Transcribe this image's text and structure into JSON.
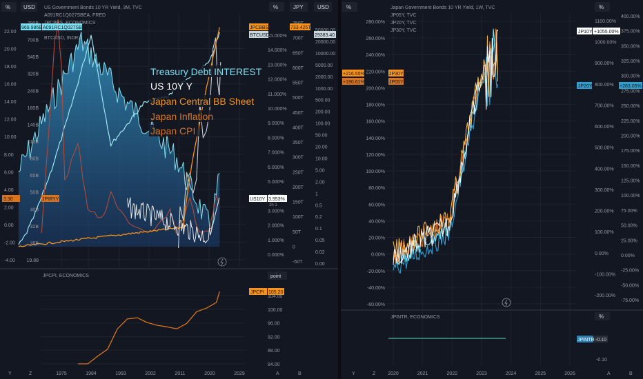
{
  "colors": {
    "bg": "#131722",
    "grid": "#2a2e39",
    "divider": "#363a45",
    "text": "#b2b5be",
    "cyan": "#7ee0f0",
    "orange": "#f7931a",
    "darkorange": "#d9741c",
    "red": "#b04a3a",
    "white": "#e8e8e8",
    "blue": "#2f7fb0",
    "teal": "#4fb3a9",
    "panelheader": "#1e222d"
  },
  "left": {
    "top_buttons": [
      "%",
      "USD",
      "%",
      "JPY",
      "USD"
    ],
    "legend": [
      "US Government Bonds 10 YR Yield, 3M, TVC",
      "A091RC1Q027SBEA, FRED",
      "JPCBBS, ECONOMICS",
      "BTCUSD, INDEX"
    ],
    "overlay_labels": [
      {
        "text": "Treasury Debt INTEREST",
        "color": "#7ee0f0"
      },
      {
        "text": "US 10Y Y",
        "color": "#ffffff"
      },
      {
        "text": "Japan Central BB Sheet",
        "color": "#f7931a"
      },
      {
        "text": "Japan Inflation",
        "color": "#d9741c"
      },
      {
        "text": "Japan CPI",
        "color": "#d9741c"
      }
    ],
    "axis_pct": [
      "22.00",
      "20.00",
      "18.00",
      "16.00",
      "14.00",
      "12.00",
      "10.00",
      "8.00",
      "6.00",
      "4.00",
      "2.00",
      "0.00",
      "-2.00",
      "-4.00"
    ],
    "axis_usd": [
      "790B",
      "700B",
      "540B",
      "320B",
      "240B",
      "180B",
      "140B",
      "110B",
      "80B",
      "65B",
      "50B",
      "40B",
      "32B",
      "25B",
      "19.88"
    ],
    "axis_pct2": [
      "15.000%",
      "14.000%",
      "13.000%",
      "12.000%",
      "11.000%",
      "10.000%",
      "9.000%",
      "8.000%",
      "7.000%",
      "6.000%",
      "5.000%",
      "4.000%",
      "3.000%",
      "2.000%",
      "1.000%",
      "0.000%"
    ],
    "axis_jpy": [
      "750T",
      "700T",
      "650T",
      "600T",
      "550T",
      "500T",
      "450T",
      "400T",
      "350T",
      "300T",
      "250T",
      "200T",
      "150T",
      "100T",
      "50T",
      "0",
      "-50T"
    ],
    "axis_usd2": [
      "50000.00",
      "20000.00",
      "10000.00",
      "5000.00",
      "2000.00",
      "1000.00",
      "500.00",
      "200.00",
      "100.00",
      "50.00",
      "20.00",
      "10.00",
      "5.00",
      "2.00",
      "1",
      "0.5",
      "0.2",
      "0.1",
      "0.05",
      "0.02",
      "0.00"
    ],
    "badges": {
      "a091": "969.986B",
      "a091_name": "A091RC1Q027SBEA",
      "jpcbbs_name": "JPCBBS",
      "jpcbbs": "733.425T",
      "btc_name": "BTCUSD",
      "btc": "29383.40",
      "jpiryy_left": "3.30",
      "jpiryy_name": "JPIRYY",
      "us10y_name": "US10Y",
      "us10y": "3.953%",
      "us10y_sub": "2h 1"
    },
    "lower": {
      "legend": "JPCPI, ECONOMICS",
      "unit_button": "point",
      "badge_name": "JPCPI",
      "badge_value": "105.20",
      "axis": [
        "104.00",
        "100.00",
        "96.00",
        "92.00",
        "88.00",
        "84.00"
      ]
    },
    "x_axis": [
      "1975",
      "1984",
      "1993",
      "2002",
      "2011",
      "2020",
      "2029"
    ],
    "corner_letters": [
      "Y",
      "Z",
      "A",
      "B"
    ]
  },
  "right": {
    "top_buttons": [
      "%",
      "%"
    ],
    "legend": [
      "Japan Government Bonds 10 YR Yield, 1W, TVC",
      "JP05Y, TVC",
      "JP20Y, TVC",
      "JP30Y, TVC"
    ],
    "axis_left": [
      "280.00%",
      "260.00%",
      "240.00%",
      "220.00%",
      "200.00%",
      "180.00%",
      "160.00%",
      "140.00%",
      "120.00%",
      "100.00%",
      "80.00%",
      "60.00%",
      "40.00%",
      "20.00%",
      "0.00%",
      "-20.00%",
      "-40.00%",
      "-60.00%"
    ],
    "axis_mid": [
      "1100.00%",
      "1000.00%",
      "900.00%",
      "800.00%",
      "700.00%",
      "600.00%",
      "500.00%",
      "400.00%",
      "300.00%",
      "200.00%",
      "100.00%",
      "0.00%",
      "-100.00%",
      "-200.00%"
    ],
    "axis_right": [
      "400.00%",
      "375.00%",
      "350.00%",
      "325.00%",
      "300.00%",
      "275.00%",
      "250.00%",
      "225.00%",
      "200.00%",
      "175.00%",
      "150.00%",
      "125.00%",
      "100.00%",
      "75.00%",
      "50.00%",
      "25.00%",
      "0.00%",
      "-25.00%",
      "-50.00%",
      "-75.00%"
    ],
    "badges": {
      "jp10y_name": "JP10Y",
      "jp10y": "+1055.00%",
      "jp30y_left": "+216.55%",
      "jp30y_name": "JP30Y",
      "jp05y_left": "+190.61%",
      "jp05y_name": "JP05Y",
      "jp20y_name": "JP20Y",
      "jp20y": "+283.05%"
    },
    "lower": {
      "legend": "JPINTR, ECONOMICS",
      "unit_button": "%",
      "badge_name": "JPINTR",
      "badge_value": "-0.10",
      "axis": [
        "-0.10"
      ]
    },
    "x_axis": [
      "2020",
      "2021",
      "2022",
      "2023",
      "2024",
      "2025",
      "2026"
    ],
    "corner_letters": [
      "Y",
      "Z",
      "A",
      "B"
    ]
  },
  "chart_data": [
    {
      "type": "line",
      "title": "US Government Bonds 10 YR Yield, 3M, TVC",
      "x": [
        1962,
        1966,
        1970,
        1974,
        1978,
        1981,
        1984,
        1987,
        1990,
        1993,
        1996,
        1999,
        2002,
        2005,
        2008,
        2011,
        2014,
        2017,
        2020,
        2023
      ],
      "series": [
        {
          "name": "US Government Bonds 10 YR Yield",
          "values": [
            4.0,
            4.8,
            7.5,
            7.6,
            8.5,
            15.0,
            12.0,
            9.0,
            8.5,
            5.5,
            6.5,
            5.5,
            4.5,
            4.3,
            3.8,
            2.0,
            2.5,
            2.4,
            0.7,
            3.95
          ]
        },
        {
          "name": "A091RC1Q027SBEA",
          "values": [
            8,
            11,
            18,
            28,
            48,
            95,
            140,
            190,
            230,
            250,
            260,
            245,
            220,
            250,
            300,
            380,
            410,
            480,
            520,
            970
          ]
        },
        {
          "name": "JPCBBS",
          "values": [
            0,
            3,
            5,
            8,
            11,
            15,
            18,
            22,
            28,
            35,
            45,
            55,
            80,
            120,
            115,
            140,
            240,
            510,
            690,
            733
          ]
        },
        {
          "name": "JPIRYY",
          "values": [
            null,
            null,
            null,
            23,
            4,
            4.5,
            2.2,
            0.2,
            3.2,
            1.2,
            0.1,
            -0.4,
            -0.9,
            -0.3,
            1.4,
            -0.2,
            2.7,
            0.5,
            0.0,
            3.3
          ]
        },
        {
          "name": "BTCUSD",
          "values": [
            null,
            null,
            null,
            null,
            null,
            null,
            null,
            null,
            null,
            null,
            null,
            null,
            null,
            null,
            null,
            5,
            400,
            14000,
            29000,
            29383.4
          ]
        }
      ],
      "y_units": [
        "%",
        "USD",
        "%",
        "JPY",
        "USD"
      ]
    },
    {
      "type": "line",
      "title": "JPCPI, ECONOMICS",
      "x": [
        1980,
        1983,
        1986,
        1989,
        1992,
        1995,
        1998,
        2001,
        2004,
        2007,
        2010,
        2013,
        2016,
        2019,
        2022,
        2023
      ],
      "series": [
        {
          "name": "JPCPI",
          "values": [
            84,
            84,
            86,
            88,
            94,
            97,
            97.5,
            96,
            95,
            95,
            94,
            95.5,
            99,
            100,
            102,
            105.2
          ]
        }
      ],
      "ylim": [
        84,
        106
      ]
    },
    {
      "type": "line",
      "title": "Japan Government Bonds 10 YR Yield, 1W, TVC",
      "x": [
        2020.0,
        2020.5,
        2021.0,
        2021.5,
        2022.0,
        2022.4,
        2022.6,
        2022.8,
        2023.0,
        2023.2,
        2023.4,
        2023.6
      ],
      "series": [
        {
          "name": "JP10Y",
          "values": [
            20,
            80,
            100,
            150,
            250,
            450,
            500,
            550,
            750,
            600,
            650,
            1055
          ]
        },
        {
          "name": "JP05Y",
          "values": [
            -20,
            0,
            15,
            25,
            45,
            120,
            160,
            200,
            250,
            180,
            160,
            190.61
          ]
        },
        {
          "name": "JP20Y",
          "values": [
            0,
            60,
            70,
            80,
            110,
            170,
            200,
            230,
            270,
            240,
            250,
            283.05
          ]
        },
        {
          "name": "JP30Y",
          "values": [
            10,
            40,
            55,
            60,
            80,
            130,
            160,
            180,
            260,
            200,
            180,
            216.55
          ]
        }
      ]
    },
    {
      "type": "line",
      "title": "JPINTR, ECONOMICS",
      "x": [
        2020,
        2023.6
      ],
      "series": [
        {
          "name": "JPINTR",
          "values": [
            -0.1,
            -0.1
          ]
        }
      ]
    }
  ]
}
